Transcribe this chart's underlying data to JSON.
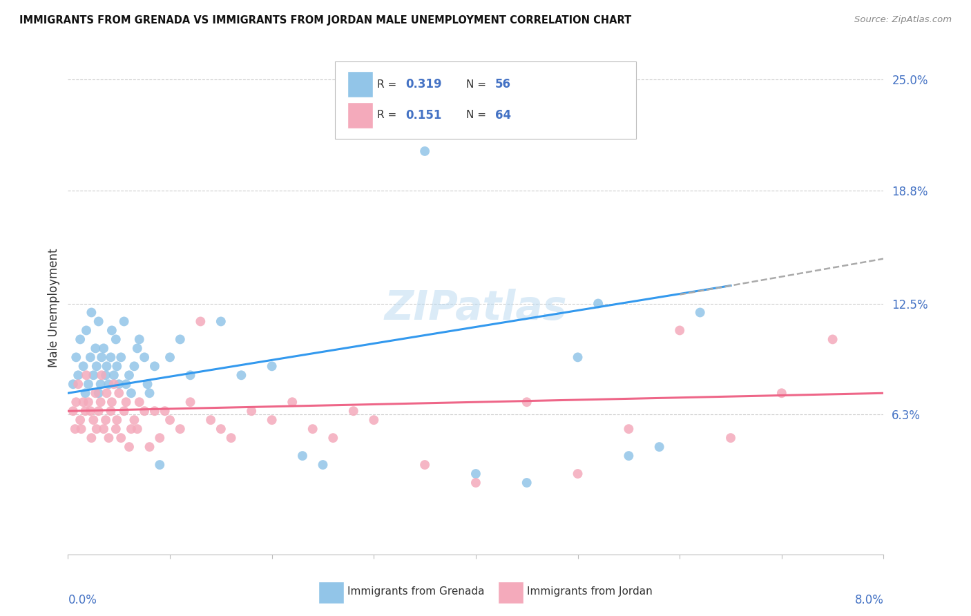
{
  "title": "IMMIGRANTS FROM GRENADA VS IMMIGRANTS FROM JORDAN MALE UNEMPLOYMENT CORRELATION CHART",
  "source": "Source: ZipAtlas.com",
  "ylabel": "Male Unemployment",
  "right_yticks": [
    6.3,
    12.5,
    18.8,
    25.0
  ],
  "right_ytick_labels": [
    "6.3%",
    "12.5%",
    "18.8%",
    "25.0%"
  ],
  "xmin": 0.0,
  "xmax": 8.0,
  "ymin": -1.5,
  "ymax": 26.0,
  "grenada_color": "#92C5E8",
  "jordan_color": "#F4AABB",
  "trendline_blue": "#3399EE",
  "trendline_pink": "#EE6688",
  "trendline_gray": "#AAAAAA",
  "legend_label1": "Immigrants from Grenada",
  "legend_label2": "Immigrants from Jordan",
  "watermark": "ZIPatlas",
  "grenada_x": [
    0.05,
    0.08,
    0.1,
    0.12,
    0.15,
    0.17,
    0.18,
    0.2,
    0.22,
    0.23,
    0.25,
    0.27,
    0.28,
    0.3,
    0.3,
    0.32,
    0.33,
    0.35,
    0.37,
    0.38,
    0.4,
    0.42,
    0.43,
    0.45,
    0.47,
    0.48,
    0.5,
    0.52,
    0.55,
    0.57,
    0.6,
    0.62,
    0.65,
    0.68,
    0.7,
    0.75,
    0.78,
    0.8,
    0.85,
    0.9,
    1.0,
    1.1,
    1.2,
    1.5,
    1.7,
    2.0,
    2.3,
    2.5,
    3.5,
    4.0,
    4.5,
    5.0,
    5.2,
    5.5,
    5.8,
    6.2
  ],
  "grenada_y": [
    8.0,
    9.5,
    8.5,
    10.5,
    9.0,
    7.5,
    11.0,
    8.0,
    9.5,
    12.0,
    8.5,
    10.0,
    9.0,
    7.5,
    11.5,
    8.0,
    9.5,
    10.0,
    8.5,
    9.0,
    8.0,
    9.5,
    11.0,
    8.5,
    10.5,
    9.0,
    8.0,
    9.5,
    11.5,
    8.0,
    8.5,
    7.5,
    9.0,
    10.0,
    10.5,
    9.5,
    8.0,
    7.5,
    9.0,
    3.5,
    9.5,
    10.5,
    8.5,
    11.5,
    8.5,
    9.0,
    4.0,
    3.5,
    21.0,
    3.0,
    2.5,
    9.5,
    12.5,
    4.0,
    4.5,
    12.0
  ],
  "jordan_x": [
    0.05,
    0.07,
    0.08,
    0.1,
    0.12,
    0.13,
    0.15,
    0.17,
    0.18,
    0.2,
    0.22,
    0.23,
    0.25,
    0.27,
    0.28,
    0.3,
    0.32,
    0.33,
    0.35,
    0.37,
    0.38,
    0.4,
    0.42,
    0.43,
    0.45,
    0.47,
    0.48,
    0.5,
    0.52,
    0.55,
    0.57,
    0.6,
    0.62,
    0.65,
    0.68,
    0.7,
    0.75,
    0.8,
    0.85,
    0.9,
    0.95,
    1.0,
    1.1,
    1.2,
    1.3,
    1.4,
    1.5,
    1.6,
    1.8,
    2.0,
    2.2,
    2.4,
    2.6,
    2.8,
    3.0,
    3.5,
    4.0,
    4.5,
    5.0,
    5.5,
    6.0,
    6.5,
    7.0,
    7.5
  ],
  "jordan_y": [
    6.5,
    5.5,
    7.0,
    8.0,
    6.0,
    5.5,
    7.0,
    6.5,
    8.5,
    7.0,
    6.5,
    5.0,
    6.0,
    7.5,
    5.5,
    6.5,
    7.0,
    8.5,
    5.5,
    6.0,
    7.5,
    5.0,
    6.5,
    7.0,
    8.0,
    5.5,
    6.0,
    7.5,
    5.0,
    6.5,
    7.0,
    4.5,
    5.5,
    6.0,
    5.5,
    7.0,
    6.5,
    4.5,
    6.5,
    5.0,
    6.5,
    6.0,
    5.5,
    7.0,
    11.5,
    6.0,
    5.5,
    5.0,
    6.5,
    6.0,
    7.0,
    5.5,
    5.0,
    6.5,
    6.0,
    3.5,
    2.5,
    7.0,
    3.0,
    5.5,
    11.0,
    5.0,
    7.5,
    10.5
  ],
  "trend_blue_x0": 0.0,
  "trend_blue_x1": 6.5,
  "trend_blue_y0": 7.5,
  "trend_blue_y1": 13.5,
  "trend_gray_x0": 6.0,
  "trend_gray_x1": 8.0,
  "trend_gray_y0": 13.0,
  "trend_gray_y1": 15.0,
  "trend_pink_x0": 0.0,
  "trend_pink_x1": 8.0,
  "trend_pink_y0": 6.5,
  "trend_pink_y1": 7.5
}
